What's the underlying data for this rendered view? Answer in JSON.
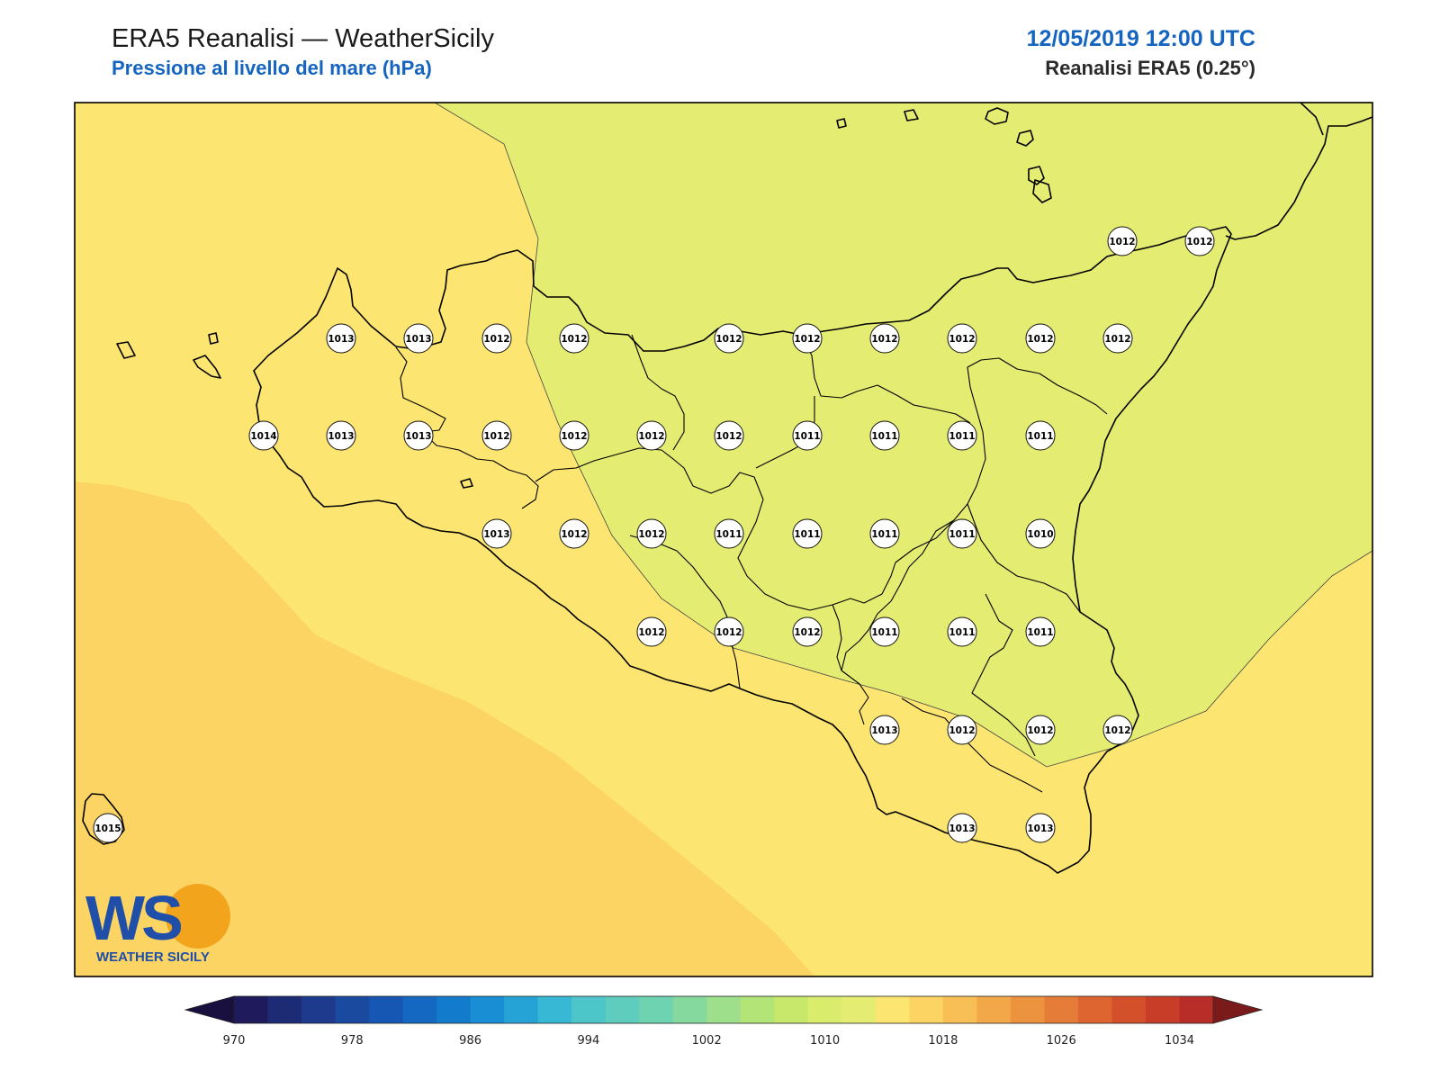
{
  "header": {
    "title": "ERA5 Reanalisi — WeatherSicily",
    "subtitle": "Pressione al livello del mare (hPa)",
    "datetime": "12/05/2019 12:00 UTC",
    "model": "Reanalisi ERA5 (0.25°)"
  },
  "logo": {
    "text": "WEATHER SICILY",
    "initials": "WS"
  },
  "colors": {
    "field_1010_1014": "#e4ec72",
    "field_1014_1018": "#fce570",
    "field_1018_1022": "#fbd463",
    "coast": "#000000"
  },
  "colorbar": {
    "labels": [
      "970",
      "978",
      "986",
      "994",
      "1002",
      "1010",
      "1018",
      "1026",
      "1034"
    ],
    "colors": [
      "#1f1a5c",
      "#1d2a74",
      "#1d3a8c",
      "#1a49a0",
      "#1657b4",
      "#1468c2",
      "#137bcc",
      "#1a8ed4",
      "#26a3d6",
      "#37b8d4",
      "#4dc6c9",
      "#5ecdbd",
      "#6dd3b0",
      "#85d99e",
      "#9ddf8b",
      "#b2e477",
      "#c7e86b",
      "#d9ec6c",
      "#e4ec72",
      "#fce570",
      "#fbd463",
      "#f7bf55",
      "#f2a849",
      "#ec9340",
      "#e57c37",
      "#de6530",
      "#d3502b",
      "#c73d28",
      "#b82d27"
    ],
    "under_color": "#1a1040",
    "over_color": "#7a1a1a"
  },
  "stations": [
    {
      "label": "1012"
    },
    {
      "label": "1012"
    },
    {
      "label": "1013"
    },
    {
      "label": "1013"
    },
    {
      "label": "1012"
    },
    {
      "label": "1012"
    },
    {
      "label": "1012"
    },
    {
      "label": "1012"
    },
    {
      "label": "1012"
    },
    {
      "label": "1012"
    },
    {
      "label": "1012"
    },
    {
      "label": "1012"
    },
    {
      "label": "1014"
    },
    {
      "label": "1013"
    },
    {
      "label": "1013"
    },
    {
      "label": "1012"
    },
    {
      "label": "1012"
    },
    {
      "label": "1012"
    },
    {
      "label": "1012"
    },
    {
      "label": "1011"
    },
    {
      "label": "1011"
    },
    {
      "label": "1011"
    },
    {
      "label": "1011"
    },
    {
      "label": "1013"
    },
    {
      "label": "1012"
    },
    {
      "label": "1012"
    },
    {
      "label": "1011"
    },
    {
      "label": "1011"
    },
    {
      "label": "1011"
    },
    {
      "label": "1011"
    },
    {
      "label": "1010"
    },
    {
      "label": "1012"
    },
    {
      "label": "1012"
    },
    {
      "label": "1012"
    },
    {
      "label": "1011"
    },
    {
      "label": "1011"
    },
    {
      "label": "1011"
    },
    {
      "label": "1013"
    },
    {
      "label": "1012"
    },
    {
      "label": "1012"
    },
    {
      "label": "1012"
    },
    {
      "label": "1015"
    },
    {
      "label": "1013"
    },
    {
      "label": "1013"
    }
  ]
}
